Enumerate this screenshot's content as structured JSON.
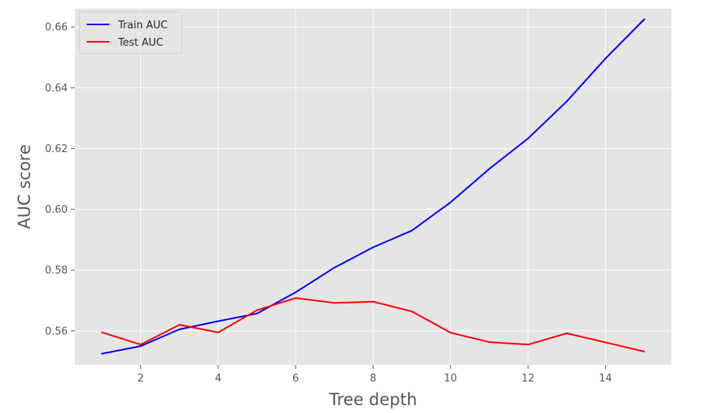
{
  "chart_data": {
    "type": "line",
    "title": "",
    "xlabel": "Tree depth",
    "ylabel": "AUC score",
    "xlim": [
      0.3,
      15.7
    ],
    "ylim": [
      0.5488,
      0.666
    ],
    "x_ticks": [
      2,
      4,
      6,
      8,
      10,
      12,
      14
    ],
    "y_ticks": [
      0.56,
      0.58,
      0.6,
      0.62,
      0.64,
      0.66
    ],
    "x_tick_labels": [
      "2",
      "4",
      "6",
      "8",
      "10",
      "12",
      "14"
    ],
    "y_tick_labels": [
      "0.56",
      "0.58",
      "0.60",
      "0.62",
      "0.64",
      "0.66"
    ],
    "grid": true,
    "legend_position": "upper-left",
    "background": "#e5e5e5",
    "x": [
      1,
      2,
      3,
      4,
      5,
      6,
      7,
      8,
      9,
      10,
      11,
      12,
      13,
      14,
      15
    ],
    "series": [
      {
        "name": "Train AUC",
        "color": "#0000ff",
        "values": [
          0.5525,
          0.555,
          0.5605,
          0.5632,
          0.5657,
          0.5727,
          0.5808,
          0.5875,
          0.593,
          0.6023,
          0.6133,
          0.6233,
          0.6355,
          0.6496,
          0.6625
        ]
      },
      {
        "name": "Test AUC",
        "color": "#ff0000",
        "values": [
          0.5595,
          0.5555,
          0.562,
          0.5595,
          0.5668,
          0.5708,
          0.5692,
          0.5696,
          0.5664,
          0.5594,
          0.5563,
          0.5555,
          0.5592,
          0.5562,
          0.5532
        ]
      }
    ]
  }
}
